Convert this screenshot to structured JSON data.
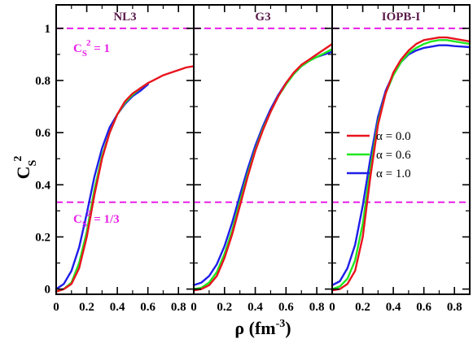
{
  "chart_data": {
    "type": "line",
    "xlabel": {
      "main": "ρ (fm",
      "sup": "-3",
      "tail": ")"
    },
    "ylabel": {
      "main": "C",
      "sub": "S",
      "sup": "2"
    },
    "xlim": [
      0,
      0.9
    ],
    "ylim": [
      -0.02,
      1.09
    ],
    "xticks": [
      "0",
      "0.2",
      "0.4",
      "0.6",
      "0.8"
    ],
    "yticks": [
      "0",
      "0.2",
      "0.4",
      "0.6",
      "0.8",
      "1"
    ],
    "reference_lines": [
      {
        "y": 1.0,
        "label_main": "C",
        "label_sub": "S",
        "label_sup": "2",
        "label_tail": " = 1"
      },
      {
        "y": 0.3333,
        "label_main": "C",
        "label_sub": "S",
        "label_sup": "2",
        "label_tail": " = 1/3"
      }
    ],
    "legend": {
      "placement": "right-middle of third panel",
      "entries": [
        "α = 0.0",
        "α = 0.6",
        "α = 1.0"
      ]
    },
    "series_colors": [
      "#e8141e",
      "#1ee81e",
      "#1e1ee8"
    ],
    "reference_color": "#e81ee8",
    "panels": [
      {
        "title": "NL3",
        "series": [
          {
            "x": [
              0,
              0.05,
              0.1,
              0.15,
              0.2,
              0.25,
              0.3,
              0.35,
              0.4,
              0.45,
              0.5,
              0.55,
              0.6,
              0.65,
              0.7,
              0.75,
              0.8,
              0.85,
              0.9
            ],
            "y": [
              -0.01,
              0.0,
              0.02,
              0.08,
              0.2,
              0.36,
              0.5,
              0.6,
              0.67,
              0.72,
              0.75,
              0.77,
              0.79,
              0.805,
              0.82,
              0.83,
              0.84,
              0.85,
              0.855
            ]
          },
          {
            "x": [
              0,
              0.05,
              0.1,
              0.15,
              0.2,
              0.25,
              0.3,
              0.35,
              0.4,
              0.45,
              0.5,
              0.55,
              0.6
            ],
            "y": [
              -0.01,
              0.0,
              0.025,
              0.1,
              0.22,
              0.38,
              0.51,
              0.6,
              0.67,
              0.715,
              0.745,
              0.77,
              0.79
            ]
          },
          {
            "x": [
              0,
              0.05,
              0.1,
              0.15,
              0.2,
              0.25,
              0.3,
              0.35,
              0.4,
              0.45,
              0.5,
              0.55,
              0.6
            ],
            "y": [
              0.0,
              0.02,
              0.07,
              0.16,
              0.29,
              0.43,
              0.54,
              0.62,
              0.67,
              0.71,
              0.74,
              0.76,
              0.785
            ]
          }
        ]
      },
      {
        "title": "G3",
        "series": [
          {
            "x": [
              0,
              0.05,
              0.1,
              0.15,
              0.2,
              0.25,
              0.3,
              0.35,
              0.4,
              0.45,
              0.5,
              0.55,
              0.6,
              0.65,
              0.7,
              0.75,
              0.8,
              0.85,
              0.9
            ],
            "y": [
              -0.005,
              0.0,
              0.015,
              0.05,
              0.12,
              0.21,
              0.32,
              0.43,
              0.53,
              0.61,
              0.68,
              0.74,
              0.79,
              0.83,
              0.86,
              0.88,
              0.9,
              0.92,
              0.94
            ]
          },
          {
            "x": [
              0,
              0.05,
              0.1,
              0.15,
              0.2,
              0.25,
              0.3,
              0.35,
              0.4,
              0.45,
              0.5,
              0.55,
              0.6,
              0.65,
              0.7,
              0.75,
              0.8,
              0.85,
              0.9
            ],
            "y": [
              0.0,
              0.005,
              0.025,
              0.065,
              0.135,
              0.225,
              0.335,
              0.44,
              0.535,
              0.615,
              0.68,
              0.74,
              0.785,
              0.825,
              0.855,
              0.875,
              0.89,
              0.905,
              0.92
            ]
          },
          {
            "x": [
              0,
              0.05,
              0.1,
              0.15,
              0.2,
              0.25,
              0.3,
              0.35,
              0.4,
              0.45,
              0.5,
              0.55,
              0.6,
              0.65,
              0.7,
              0.75,
              0.8,
              0.85,
              0.9
            ],
            "y": [
              0.015,
              0.025,
              0.05,
              0.095,
              0.165,
              0.255,
              0.36,
              0.46,
              0.55,
              0.625,
              0.69,
              0.745,
              0.79,
              0.825,
              0.855,
              0.875,
              0.89,
              0.9,
              0.91
            ]
          }
        ]
      },
      {
        "title": "IOPB-I",
        "series": [
          {
            "x": [
              0,
              0.05,
              0.1,
              0.15,
              0.2,
              0.25,
              0.3,
              0.35,
              0.4,
              0.45,
              0.5,
              0.55,
              0.6,
              0.65,
              0.7,
              0.75,
              0.8,
              0.85,
              0.9
            ],
            "y": [
              -0.005,
              0.0,
              0.02,
              0.07,
              0.2,
              0.43,
              0.63,
              0.75,
              0.83,
              0.88,
              0.915,
              0.94,
              0.955,
              0.96,
              0.965,
              0.965,
              0.96,
              0.955,
              0.95
            ]
          },
          {
            "x": [
              0,
              0.05,
              0.1,
              0.15,
              0.2,
              0.25,
              0.3,
              0.35,
              0.4,
              0.45,
              0.5,
              0.55,
              0.6,
              0.65,
              0.7,
              0.75,
              0.8,
              0.85,
              0.9
            ],
            "y": [
              0.0,
              0.01,
              0.04,
              0.11,
              0.25,
              0.46,
              0.64,
              0.75,
              0.82,
              0.87,
              0.905,
              0.925,
              0.94,
              0.95,
              0.955,
              0.955,
              0.95,
              0.945,
              0.94
            ]
          },
          {
            "x": [
              0,
              0.05,
              0.1,
              0.15,
              0.2,
              0.25,
              0.3,
              0.35,
              0.4,
              0.45,
              0.5,
              0.55,
              0.6,
              0.65,
              0.7,
              0.75,
              0.8,
              0.85,
              0.9
            ],
            "y": [
              0.015,
              0.03,
              0.08,
              0.17,
              0.32,
              0.5,
              0.66,
              0.76,
              0.825,
              0.87,
              0.9,
              0.915,
              0.925,
              0.93,
              0.935,
              0.935,
              0.932,
              0.93,
              0.928
            ]
          }
        ]
      }
    ]
  }
}
